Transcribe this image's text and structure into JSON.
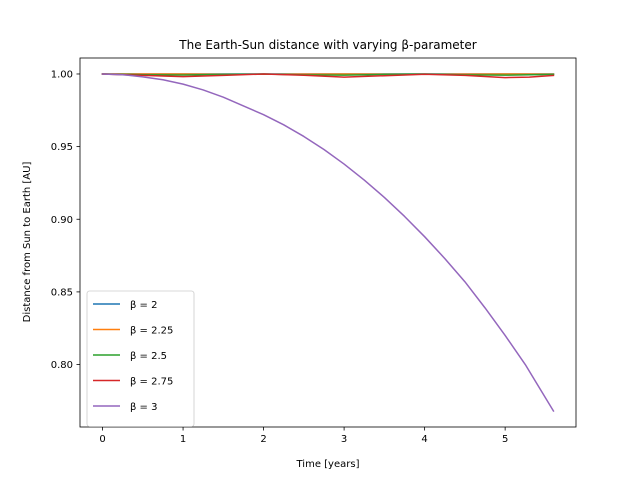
{
  "chart_data": {
    "type": "line",
    "title": "The Earth-Sun distance with varying β-parameter",
    "xlabel": "Time [years]",
    "ylabel": "Distance from Sun to Earth [AU]",
    "xlim": [
      -0.28,
      5.88
    ],
    "ylim": [
      0.757,
      1.011
    ],
    "xticks": [
      0,
      1,
      2,
      3,
      4,
      5
    ],
    "yticks": [
      0.8,
      0.85,
      0.9,
      0.95,
      1.0
    ],
    "ytick_labels": [
      "0.80",
      "0.85",
      "0.90",
      "0.95",
      "1.00"
    ],
    "grid": false,
    "legend_position": "lower-left",
    "series": [
      {
        "name": "β = 2",
        "color": "#1f77b4",
        "x": [
          0,
          0.5,
          1,
          1.5,
          2,
          2.5,
          3,
          3.5,
          4,
          4.5,
          5,
          5.6
        ],
        "y": [
          1.0,
          1.0,
          1.0,
          1.0,
          1.0,
          1.0,
          1.0,
          1.0,
          1.0,
          1.0,
          1.0,
          1.0
        ]
      },
      {
        "name": "β = 2.25",
        "color": "#ff7f0e",
        "x": [
          0,
          0.5,
          1,
          1.5,
          2,
          2.5,
          3,
          3.5,
          4,
          4.5,
          5,
          5.6
        ],
        "y": [
          1.0,
          1.0,
          1.0,
          0.9998,
          0.9998,
          0.9999,
          1.0,
          0.9999,
          0.9998,
          0.9999,
          1.0,
          0.9999
        ]
      },
      {
        "name": "β = 2.5",
        "color": "#2ca02c",
        "x": [
          0,
          0.5,
          1,
          1.5,
          2,
          2.5,
          3,
          3.5,
          4,
          4.5,
          5,
          5.6
        ],
        "y": [
          1.0,
          0.9995,
          0.9993,
          0.9997,
          1.0,
          0.9994,
          0.9992,
          0.9997,
          1.0,
          0.9994,
          0.9992,
          0.9997
        ]
      },
      {
        "name": "β = 2.75",
        "color": "#d62728",
        "x": [
          0,
          0.5,
          1,
          1.5,
          2,
          2.5,
          3,
          3.5,
          4,
          4.5,
          5,
          5.3,
          5.6
        ],
        "y": [
          1.0,
          0.999,
          0.9982,
          0.999,
          1.0,
          0.9991,
          0.9978,
          0.9988,
          0.9998,
          0.999,
          0.9975,
          0.9978,
          0.999
        ]
      },
      {
        "name": "β = 3",
        "color": "#9467bd",
        "x": [
          0,
          0.25,
          0.5,
          0.75,
          1,
          1.25,
          1.5,
          1.75,
          2,
          2.25,
          2.5,
          2.75,
          3,
          3.25,
          3.5,
          3.75,
          4,
          4.25,
          4.5,
          4.75,
          5,
          5.25,
          5.6
        ],
        "y": [
          1.0,
          0.9995,
          0.998,
          0.996,
          0.993,
          0.989,
          0.984,
          0.978,
          0.972,
          0.965,
          0.957,
          0.948,
          0.938,
          0.927,
          0.915,
          0.902,
          0.888,
          0.873,
          0.857,
          0.839,
          0.82,
          0.8,
          0.768
        ]
      }
    ]
  }
}
